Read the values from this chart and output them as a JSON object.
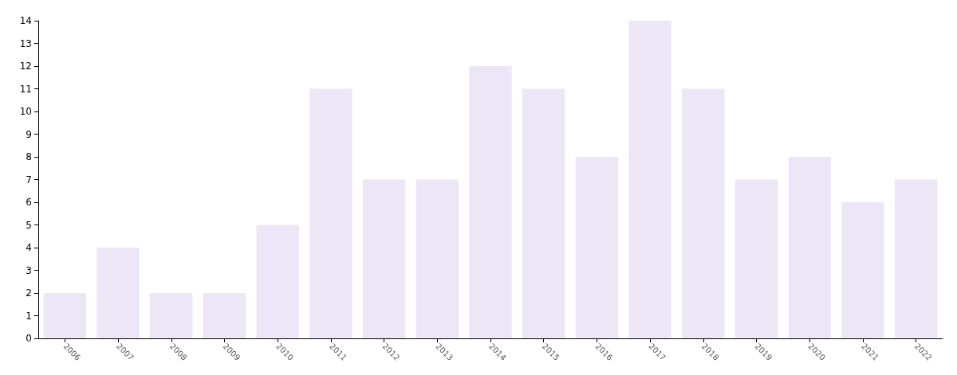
{
  "chart_data": {
    "type": "bar",
    "categories": [
      "2006",
      "2007",
      "2008",
      "2009",
      "2010",
      "2011",
      "2012",
      "2013",
      "2014",
      "2015",
      "2016",
      "2017",
      "2018",
      "2019",
      "2020",
      "2021",
      "2022"
    ],
    "values": [
      2,
      4,
      2,
      2,
      5,
      11,
      7,
      7,
      12,
      11,
      8,
      14,
      11,
      7,
      8,
      6,
      7
    ],
    "color": "#ece6f6",
    "ylim": [
      0,
      14
    ],
    "yticks": [
      0,
      1,
      2,
      3,
      4,
      5,
      6,
      7,
      8,
      9,
      10,
      11,
      12,
      13,
      14
    ],
    "grid": false
  }
}
